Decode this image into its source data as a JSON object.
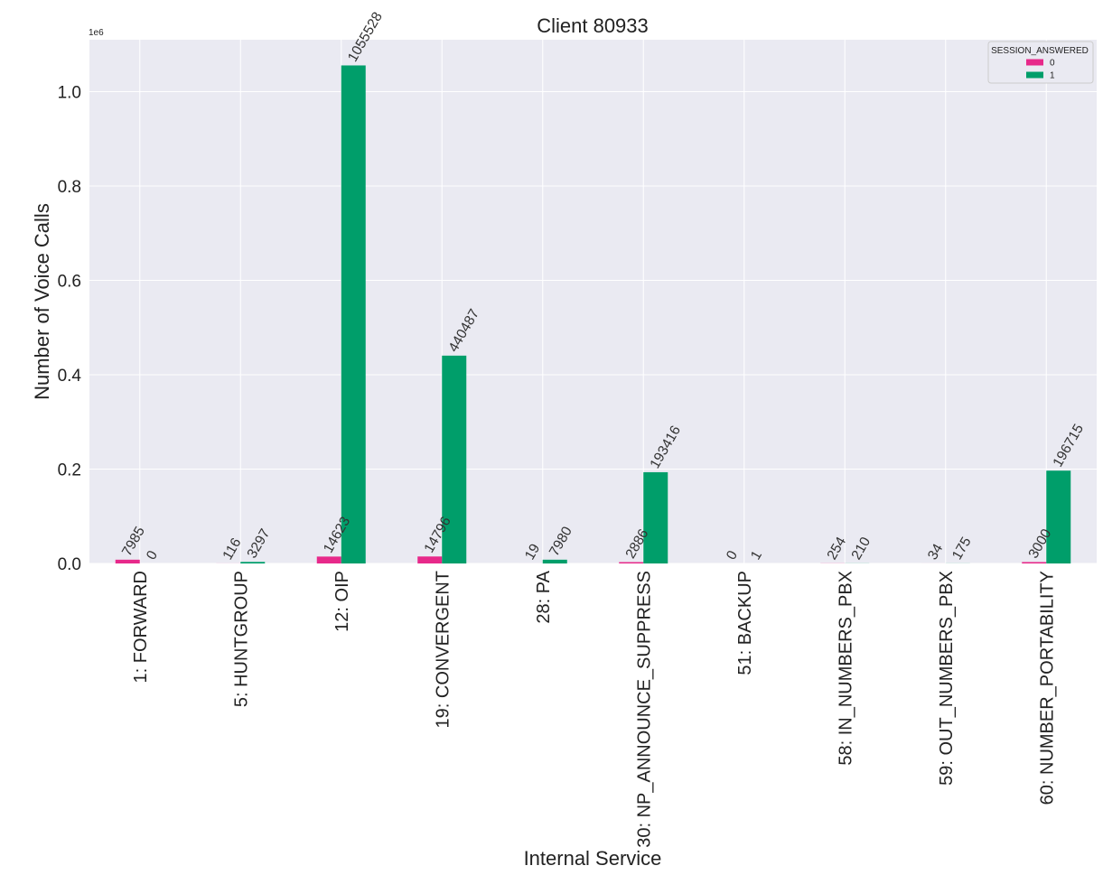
{
  "chart_data": {
    "type": "bar",
    "title": "Client 80933",
    "xlabel": "Internal Service",
    "ylabel": "Number of Voice Calls",
    "y_offset_label": "1e6",
    "ylim": [
      0,
      1110000
    ],
    "yticks": [
      0,
      200000,
      400000,
      600000,
      800000,
      1000000
    ],
    "ytick_labels": [
      "0.0",
      "0.2",
      "0.4",
      "0.6",
      "0.8",
      "1.0"
    ],
    "grid": true,
    "legend": {
      "title": "SESSION_ANSWERED",
      "placement": "top-right"
    },
    "categories": [
      "1: FORWARD",
      "5: HUNTGROUP",
      "12: OIP",
      "19: CONVERGENT",
      "28: PA",
      "30: NP_ANNOUNCE_SUPPRESS",
      "51: BACKUP",
      "58: IN_NUMBERS_PBX",
      "59: OUT_NUMBERS_PBX",
      "60: NUMBER_PORTABILITY"
    ],
    "series": [
      {
        "name": "0",
        "color": "#e7298a",
        "values": [
          7985,
          116,
          14623,
          14796,
          19,
          2886,
          0,
          254,
          34,
          3000
        ]
      },
      {
        "name": "1",
        "color": "#009e6a",
        "values": [
          0,
          3297,
          1055528,
          440487,
          7980,
          193416,
          1,
          210,
          175,
          196715
        ]
      }
    ]
  }
}
